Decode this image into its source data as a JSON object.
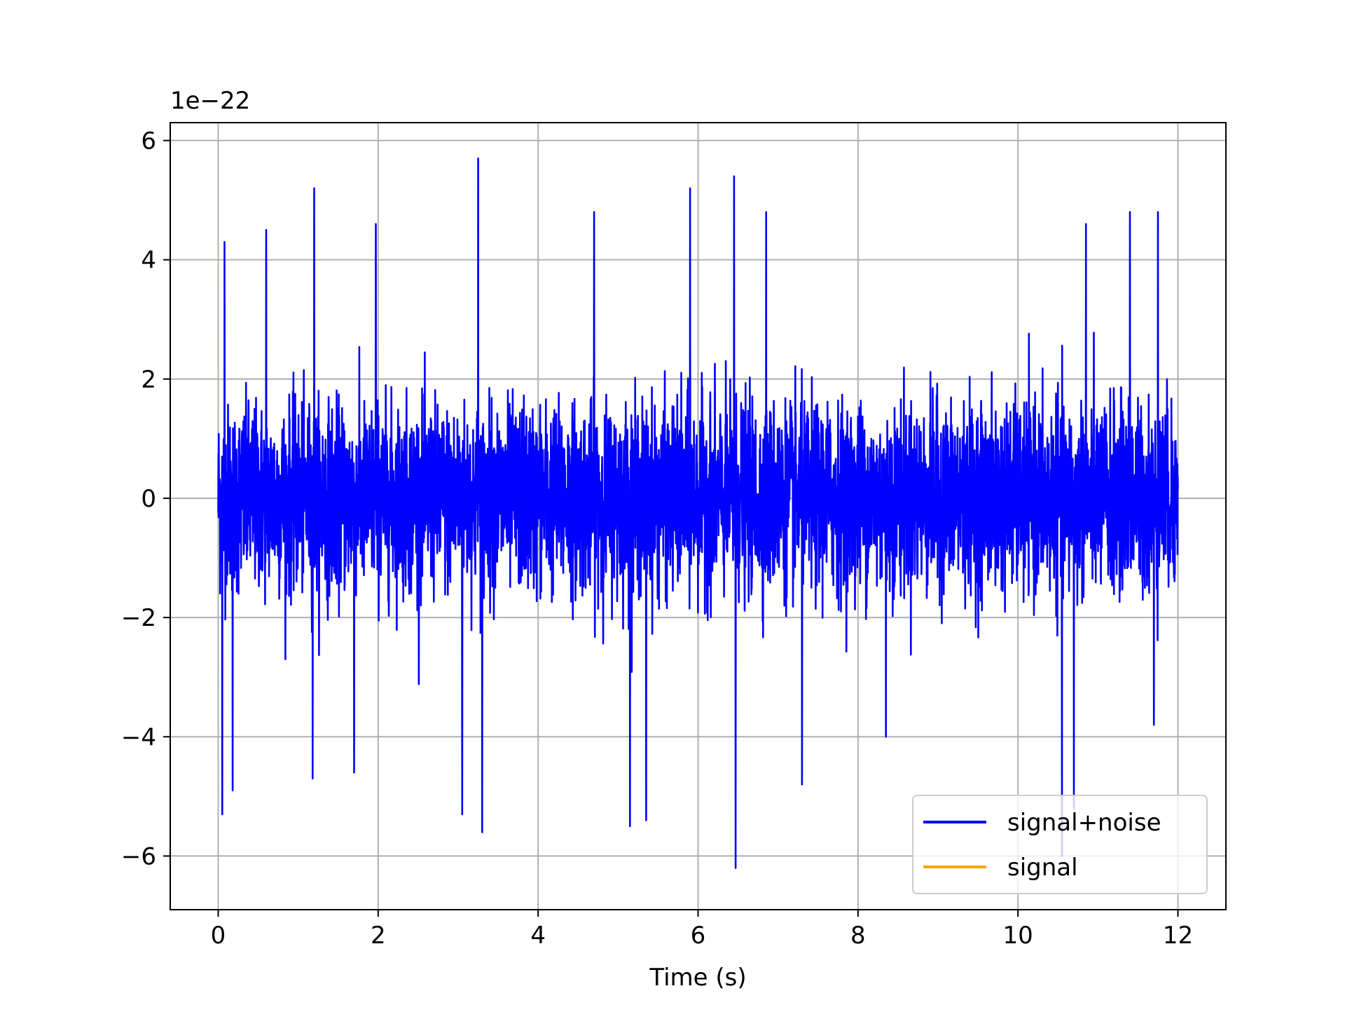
{
  "chart_data": {
    "type": "line",
    "title": "",
    "xlabel": "Time (s)",
    "ylabel": "",
    "y_offset_label": "1e−22",
    "xlim": [
      -0.6,
      12.6
    ],
    "ylim": [
      -6.9,
      6.3
    ],
    "x_ticks": [
      0,
      2,
      4,
      6,
      8,
      10,
      12
    ],
    "x_tick_labels": [
      "0",
      "2",
      "4",
      "6",
      "8",
      "10",
      "12"
    ],
    "y_ticks": [
      -6,
      -4,
      -2,
      0,
      2,
      4,
      6
    ],
    "y_tick_labels": [
      "−6",
      "−4",
      "−2",
      "0",
      "2",
      "4",
      "6"
    ],
    "grid": true,
    "legend_position": "lower-right",
    "series": [
      {
        "name": "signal+noise",
        "color": "#0000ff",
        "x_range": [
          0,
          12
        ],
        "typical_amplitude": [
          -2.5,
          2.5
        ],
        "peaks": [
          {
            "x": 0.05,
            "y": -5.3
          },
          {
            "x": 0.08,
            "y": 4.3
          },
          {
            "x": 0.18,
            "y": -4.9
          },
          {
            "x": 0.6,
            "y": 4.5
          },
          {
            "x": 1.2,
            "y": 5.2
          },
          {
            "x": 1.18,
            "y": -4.7
          },
          {
            "x": 1.7,
            "y": -4.6
          },
          {
            "x": 1.97,
            "y": 4.6
          },
          {
            "x": 3.05,
            "y": -5.3
          },
          {
            "x": 3.25,
            "y": 5.7
          },
          {
            "x": 3.3,
            "y": -5.6
          },
          {
            "x": 4.7,
            "y": 4.8
          },
          {
            "x": 5.15,
            "y": -5.5
          },
          {
            "x": 5.35,
            "y": -5.4
          },
          {
            "x": 5.9,
            "y": 5.2
          },
          {
            "x": 6.45,
            "y": 5.4
          },
          {
            "x": 6.47,
            "y": -6.2
          },
          {
            "x": 6.85,
            "y": 4.8
          },
          {
            "x": 7.3,
            "y": -4.8
          },
          {
            "x": 8.35,
            "y": -4.0
          },
          {
            "x": 10.55,
            "y": -6.0
          },
          {
            "x": 10.7,
            "y": -5.2
          },
          {
            "x": 10.85,
            "y": 4.6
          },
          {
            "x": 11.4,
            "y": 4.8
          },
          {
            "x": 11.75,
            "y": 4.8
          },
          {
            "x": 11.7,
            "y": -3.8
          }
        ]
      },
      {
        "name": "signal",
        "color": "#ffa500",
        "x_range": [
          0,
          12
        ],
        "y_values": [
          0,
          0
        ]
      }
    ]
  }
}
